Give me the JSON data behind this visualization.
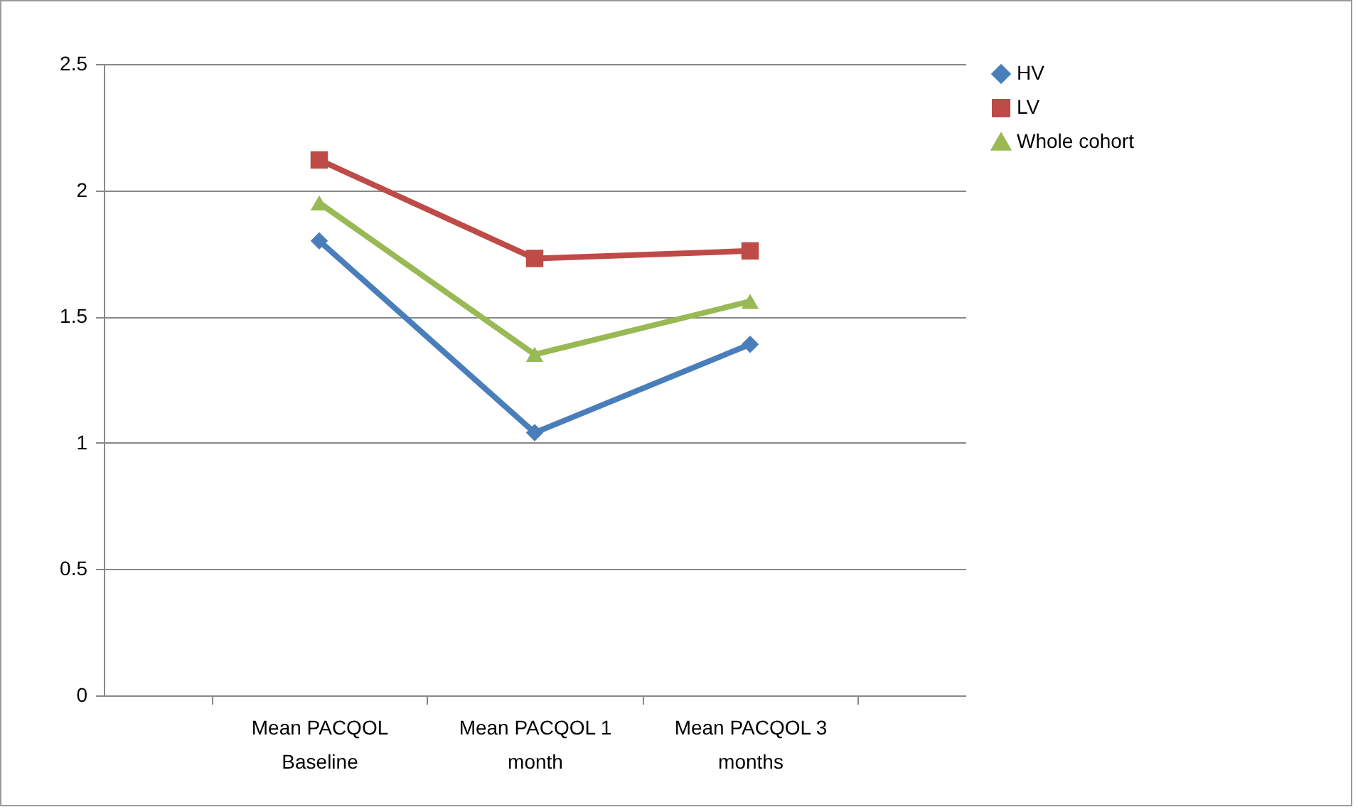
{
  "chart_data": {
    "type": "line",
    "categories": [
      "Mean PACQOL Baseline",
      "Mean PACQOL 1 month",
      "Mean PACQOL 3 months"
    ],
    "series": [
      {
        "name": "HV",
        "color": "#4a7ebb",
        "values": [
          1.8,
          1.04,
          1.39
        ],
        "marker": "diamond"
      },
      {
        "name": "LV",
        "color": "#be4b48",
        "values": [
          2.12,
          1.73,
          1.76
        ],
        "marker": "square"
      },
      {
        "name": "Whole cohort",
        "color": "#98b954",
        "values": [
          1.95,
          1.35,
          1.56
        ],
        "marker": "triangle"
      }
    ],
    "ylim": [
      0,
      2.5
    ],
    "yticks": [
      0,
      0.5,
      1,
      1.5,
      2,
      2.5
    ],
    "grid": "y",
    "legend": "right",
    "line_style": "solid"
  }
}
